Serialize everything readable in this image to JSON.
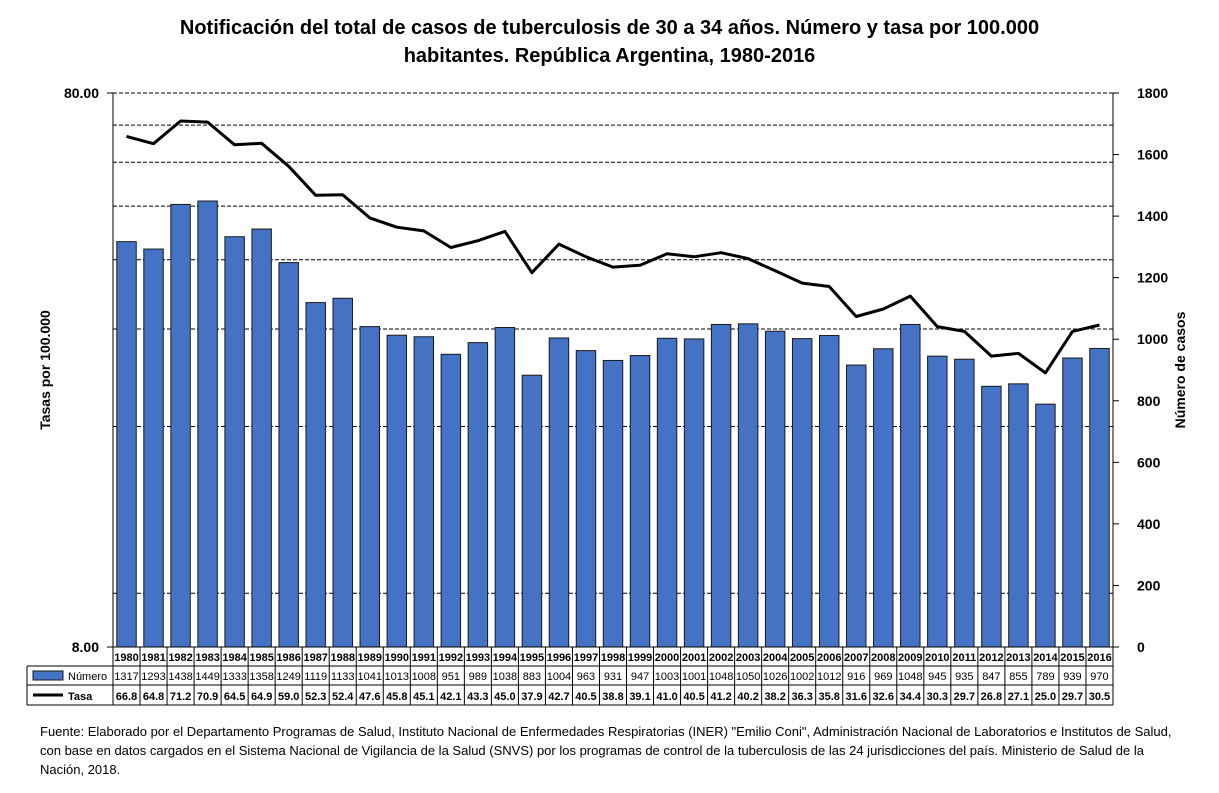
{
  "chart_data": {
    "type": "bar+line",
    "title_line1": "Notificación del total de casos de tuberculosis de 30 a 34 años. Número y tasa por 100.000",
    "title_line2": "habitantes. República Argentina, 1980-2016",
    "ylabel_left": "Tasas por 100.000",
    "ylabel_right": "Número de casos",
    "left_axis": {
      "scale": "log",
      "ylim": [
        8,
        80
      ],
      "tick_labels": [
        "80.00",
        "8.00"
      ]
    },
    "right_axis": {
      "scale": "linear",
      "ylim": [
        0,
        1800
      ],
      "ticks": [
        0,
        200,
        400,
        600,
        800,
        1000,
        1200,
        1400,
        1600,
        1800
      ]
    },
    "grid": true,
    "legend_placement": "data-table-left",
    "categories": [
      "1980",
      "1981",
      "1982",
      "1983",
      "1984",
      "1985",
      "1986",
      "1987",
      "1988",
      "1989",
      "1990",
      "1991",
      "1992",
      "1993",
      "1994",
      "1995",
      "1996",
      "1997",
      "1998",
      "1999",
      "2000",
      "2001",
      "2002",
      "2003",
      "2004",
      "2005",
      "2006",
      "2007",
      "2008",
      "2009",
      "2010",
      "2011",
      "2012",
      "2013",
      "2014",
      "2015",
      "2016"
    ],
    "series": [
      {
        "name": "Número",
        "type": "bar",
        "axis": "right",
        "color": "#4472C4",
        "values": [
          1317,
          1293,
          1438,
          1449,
          1333,
          1358,
          1249,
          1119,
          1133,
          1041,
          1013,
          1008,
          951,
          989,
          1038,
          883,
          1004,
          963,
          931,
          947,
          1003,
          1001,
          1048,
          1050,
          1026,
          1002,
          1012,
          916,
          969,
          1048,
          945,
          935,
          847,
          855,
          789,
          939,
          970
        ]
      },
      {
        "name": "Tasa",
        "type": "line",
        "axis": "left",
        "color": "#000000",
        "values": [
          66.8,
          64.8,
          71.2,
          70.9,
          64.5,
          64.9,
          59.0,
          52.3,
          52.4,
          47.6,
          45.8,
          45.1,
          42.1,
          43.3,
          45.0,
          37.9,
          42.7,
          40.5,
          38.8,
          39.1,
          41.0,
          40.5,
          41.2,
          40.2,
          38.2,
          36.3,
          35.8,
          31.6,
          32.6,
          34.4,
          30.3,
          29.7,
          26.8,
          27.1,
          25.0,
          29.7,
          30.5
        ]
      }
    ]
  },
  "source_note": "Fuente: Elaborado por el Departamento Programas de Salud, Instituto Nacional de Enfermedades Respiratorias (INER) \"Emilio Coni\", Administración Nacional de Laboratorios e Institutos de Salud, con base en datos cargados en el Sistema Nacional de Vigilancia de la Salud (SNVS) por los programas de control de la tuberculosis de las 24 jurisdicciones del país. Ministerio de Salud de la Nación, 2018."
}
